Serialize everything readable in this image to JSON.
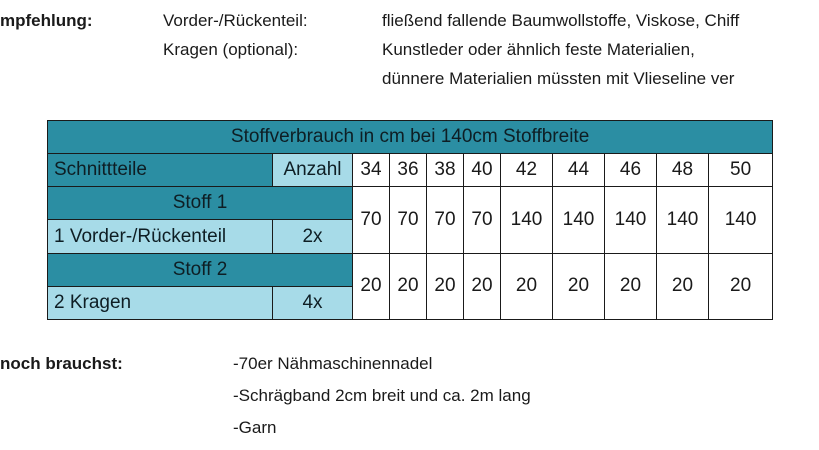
{
  "empfehlung": {
    "label": "mpfehlung:",
    "rows": [
      {
        "part": "Vorder-/Rückenteil:",
        "material": "fließend fallende Baumwollstoffe, Viskose, Chiff"
      },
      {
        "part": "Kragen (optional):",
        "material": "Kunstleder oder ähnlich feste Materialien,"
      },
      {
        "part": "",
        "material": "dünnere Materialien müssten mit Vlieseline ver"
      }
    ]
  },
  "table": {
    "title": "Stoffverbrauch in cm bei 140cm Stoffbreite",
    "col_part": "Schnittteile",
    "col_count": "Anzahl",
    "sizes": [
      "34",
      "36",
      "38",
      "40",
      "42",
      "44",
      "46",
      "48",
      "50"
    ],
    "groups": [
      {
        "name": "Stoff 1",
        "item": "1 Vorder-/Rückenteil",
        "count": "2x",
        "values": [
          "70",
          "70",
          "70",
          "70",
          "140",
          "140",
          "140",
          "140",
          "140"
        ]
      },
      {
        "name": "Stoff 2",
        "item": "2 Kragen",
        "count": "4x",
        "values": [
          "20",
          "20",
          "20",
          "20",
          "20",
          "20",
          "20",
          "20",
          "20"
        ]
      }
    ]
  },
  "extras": {
    "label": "noch brauchst:",
    "items": [
      "-70er Nähmaschinennadel",
      "-Schrägband 2cm breit und ca. 2m lang",
      "-Garn"
    ]
  },
  "colors": {
    "header_dark": "#2b8ea3",
    "header_light": "#a7dbe8"
  }
}
